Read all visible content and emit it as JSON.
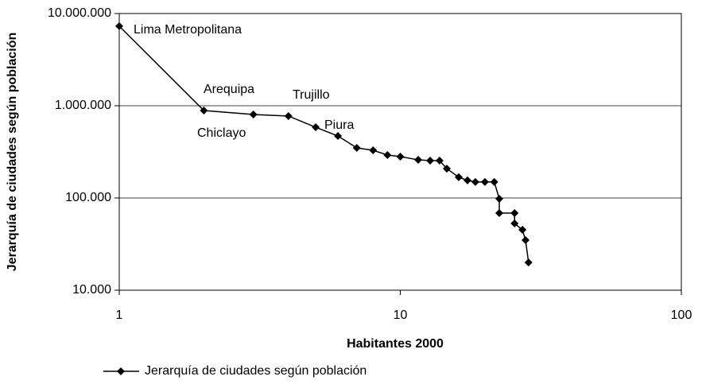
{
  "chart_data": {
    "type": "line",
    "log_x": true,
    "log_y": true,
    "grid": true,
    "xlabel": "Habitantes 2000",
    "ylabel": "Jerarquía de ciudades según población",
    "xlim": [
      1,
      100
    ],
    "xticks": [
      1,
      10,
      100
    ],
    "ylim": [
      10000,
      10000000
    ],
    "yticks": [
      {
        "value": 10000,
        "label": "10.000"
      },
      {
        "value": 100000,
        "label": "100.000"
      },
      {
        "value": 1000000,
        "label": "1.000.000"
      },
      {
        "value": 10000000,
        "label": "10.000.000"
      }
    ],
    "legend": "bottom",
    "annotations": [
      "Lima Metropolitana",
      "Arequipa",
      "Trujillo",
      "Chiclayo",
      "Piura"
    ],
    "series": [
      {
        "name": "Jerarquía de ciudades según población",
        "color": "#000000",
        "x": [
          1,
          2,
          3,
          4,
          5,
          6,
          7,
          8,
          9,
          10,
          11.58,
          12.77,
          13.8,
          14.64,
          16.14,
          17.34,
          18.5,
          20.0,
          21.6,
          22.5,
          22.5,
          25.5,
          25.5,
          27.2,
          27.9,
          28.6
        ],
        "values": [
          7300000,
          888000,
          803000,
          773000,
          585000,
          470000,
          349000,
          329000,
          292000,
          281000,
          259000,
          254000,
          254000,
          208000,
          168000,
          155000,
          149000,
          149000,
          149000,
          98000,
          68500,
          68500,
          53000,
          45200,
          34900,
          20000
        ]
      }
    ]
  }
}
